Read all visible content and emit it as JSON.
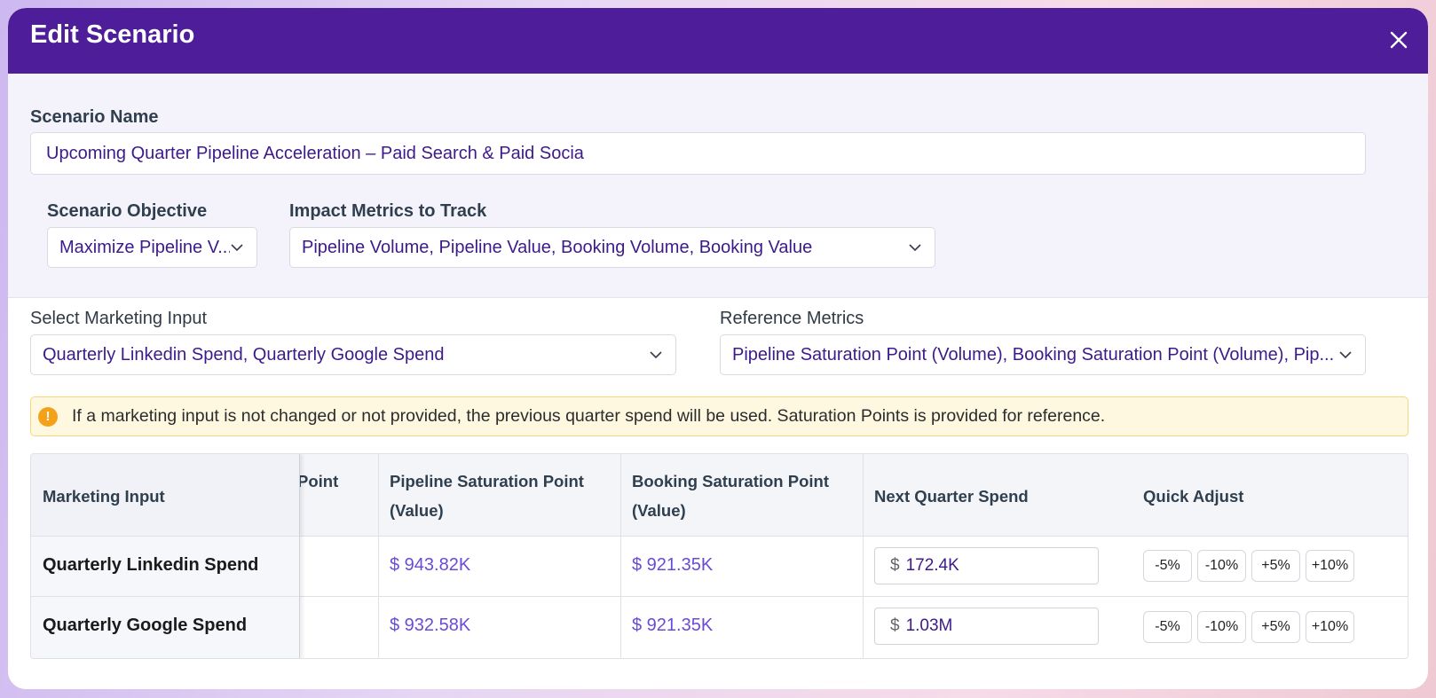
{
  "modal": {
    "title": "Edit Scenario",
    "close_icon": "close-icon"
  },
  "scenario_name": {
    "label": "Scenario Name",
    "value": "Upcoming Quarter Pipeline Acceleration – Paid Search & Paid Socia"
  },
  "objective": {
    "label": "Scenario Objective",
    "value": "Maximize Pipeline V..."
  },
  "impact_metrics": {
    "label": "Impact Metrics to Track",
    "value": "Pipeline Volume, Pipeline Value, Booking Volume, Booking Value"
  },
  "marketing_input": {
    "label": "Select Marketing Input",
    "value": "Quarterly Linkedin Spend, Quarterly Google Spend"
  },
  "reference_metrics": {
    "label": "Reference Metrics",
    "value": "Pipeline Saturation Point (Volume), Booking Saturation Point (Volume), Pip..."
  },
  "info": {
    "icon": "info-icon",
    "glyph": "!",
    "text": "If a marketing input is not changed or not provided, the previous quarter spend will be used. Saturation Points is provided for reference."
  },
  "table": {
    "headers": {
      "marketing_input": "Marketing Input",
      "partial": "Point",
      "pipeline_sat_line1": "Pipeline Saturation Point",
      "pipeline_sat_line2": "(Value)",
      "booking_sat_line1": "Booking Saturation Point",
      "booking_sat_line2": "(Value)",
      "next_quarter": "Next Quarter Spend",
      "quick_adjust": "Quick Adjust"
    },
    "rows": [
      {
        "name": "Quarterly Linkedin Spend",
        "pipeline_sat": "$ 943.82K",
        "booking_sat": "$ 921.35K",
        "currency": "$",
        "spend": "172.4K"
      },
      {
        "name": "Quarterly Google Spend",
        "pipeline_sat": "$ 932.58K",
        "booking_sat": "$ 921.35K",
        "currency": "$",
        "spend": "1.03M"
      }
    ],
    "quick_adjust": [
      "-5%",
      "-10%",
      "+5%",
      "+10%"
    ]
  },
  "colors": {
    "header_bg": "#4e1d99",
    "accent_text": "#3d1a8a",
    "money_text": "#6a4bd6",
    "warning_bg": "#fff8e1",
    "warning_icon": "#f4a11a"
  }
}
